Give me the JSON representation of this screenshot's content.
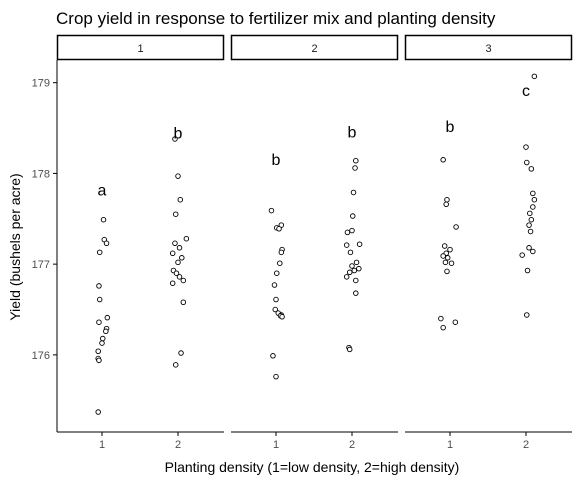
{
  "chart_data": {
    "type": "scatter",
    "title": "Crop yield in response to fertilizer mix and planting density",
    "xlabel": "Planting density (1=low density, 2=high density)",
    "ylabel": "Yield (bushels per acre)",
    "ylim": [
      175.15,
      179.25
    ],
    "y_ticks": [
      176,
      177,
      178,
      179
    ],
    "x_ticks": [
      "1",
      "2"
    ],
    "grid": false,
    "panels": [
      {
        "strip_label": "1",
        "groups": [
          {
            "x": "1",
            "letter": "a",
            "letter_y": 177.82,
            "points": [
              {
                "dx": 0.02,
                "y": 177.49
              },
              {
                "dx": 0.03,
                "y": 177.27
              },
              {
                "dx": 0.06,
                "y": 177.23
              },
              {
                "dx": -0.03,
                "y": 177.13
              },
              {
                "dx": -0.04,
                "y": 176.76
              },
              {
                "dx": -0.03,
                "y": 176.61
              },
              {
                "dx": 0.07,
                "y": 176.41
              },
              {
                "dx": -0.04,
                "y": 176.36
              },
              {
                "dx": 0.06,
                "y": 176.29
              },
              {
                "dx": 0.05,
                "y": 176.26
              },
              {
                "dx": 0.01,
                "y": 176.18
              },
              {
                "dx": 0.0,
                "y": 176.13
              },
              {
                "dx": -0.05,
                "y": 176.04
              },
              {
                "dx": -0.05,
                "y": 175.96
              },
              {
                "dx": -0.04,
                "y": 175.94
              },
              {
                "dx": -0.05,
                "y": 175.37
              }
            ]
          },
          {
            "x": "2",
            "letter": "b",
            "letter_y": 178.45,
            "points": [
              {
                "dx": -0.04,
                "y": 178.38
              },
              {
                "dx": 0.0,
                "y": 177.97
              },
              {
                "dx": 0.03,
                "y": 177.71
              },
              {
                "dx": -0.03,
                "y": 177.55
              },
              {
                "dx": 0.11,
                "y": 177.28
              },
              {
                "dx": -0.04,
                "y": 177.23
              },
              {
                "dx": 0.02,
                "y": 177.18
              },
              {
                "dx": -0.07,
                "y": 177.12
              },
              {
                "dx": 0.05,
                "y": 177.07
              },
              {
                "dx": 0.0,
                "y": 177.02
              },
              {
                "dx": -0.06,
                "y": 176.93
              },
              {
                "dx": -0.02,
                "y": 176.9
              },
              {
                "dx": 0.02,
                "y": 176.86
              },
              {
                "dx": 0.07,
                "y": 176.82
              },
              {
                "dx": -0.07,
                "y": 176.79
              },
              {
                "dx": 0.07,
                "y": 176.58
              },
              {
                "dx": 0.04,
                "y": 176.02
              },
              {
                "dx": -0.03,
                "y": 175.89
              }
            ]
          }
        ]
      },
      {
        "strip_label": "2",
        "groups": [
          {
            "x": "1",
            "letter": "b",
            "letter_y": 178.16,
            "points": [
              {
                "dx": -0.06,
                "y": 177.59
              },
              {
                "dx": 0.07,
                "y": 177.43
              },
              {
                "dx": 0.01,
                "y": 177.4
              },
              {
                "dx": 0.04,
                "y": 177.39
              },
              {
                "dx": 0.08,
                "y": 177.16
              },
              {
                "dx": 0.07,
                "y": 177.13
              },
              {
                "dx": 0.05,
                "y": 177.01
              },
              {
                "dx": 0.01,
                "y": 176.9
              },
              {
                "dx": -0.02,
                "y": 176.77
              },
              {
                "dx": 0.0,
                "y": 176.61
              },
              {
                "dx": -0.01,
                "y": 176.5
              },
              {
                "dx": 0.03,
                "y": 176.46
              },
              {
                "dx": 0.07,
                "y": 176.44
              },
              {
                "dx": 0.06,
                "y": 176.43
              },
              {
                "dx": 0.08,
                "y": 176.42
              },
              {
                "dx": -0.04,
                "y": 175.99
              },
              {
                "dx": 0.0,
                "y": 175.76
              }
            ]
          },
          {
            "x": "2",
            "letter": "b",
            "letter_y": 178.46,
            "points": [
              {
                "dx": 0.05,
                "y": 178.14
              },
              {
                "dx": 0.04,
                "y": 178.06
              },
              {
                "dx": 0.02,
                "y": 177.79
              },
              {
                "dx": 0.01,
                "y": 177.53
              },
              {
                "dx": 0.0,
                "y": 177.37
              },
              {
                "dx": -0.06,
                "y": 177.35
              },
              {
                "dx": 0.1,
                "y": 177.22
              },
              {
                "dx": -0.07,
                "y": 177.21
              },
              {
                "dx": -0.02,
                "y": 177.13
              },
              {
                "dx": 0.06,
                "y": 177.02
              },
              {
                "dx": 0.0,
                "y": 176.98
              },
              {
                "dx": 0.09,
                "y": 176.95
              },
              {
                "dx": 0.03,
                "y": 176.93
              },
              {
                "dx": -0.03,
                "y": 176.91
              },
              {
                "dx": -0.07,
                "y": 176.86
              },
              {
                "dx": 0.05,
                "y": 176.82
              },
              {
                "dx": 0.05,
                "y": 176.68
              },
              {
                "dx": -0.04,
                "y": 176.08
              },
              {
                "dx": -0.03,
                "y": 176.06
              }
            ]
          }
        ]
      },
      {
        "strip_label": "3",
        "groups": [
          {
            "x": "1",
            "letter": "b",
            "letter_y": 178.52,
            "points": [
              {
                "dx": -0.09,
                "y": 178.15
              },
              {
                "dx": -0.04,
                "y": 177.71
              },
              {
                "dx": -0.05,
                "y": 177.66
              },
              {
                "dx": 0.08,
                "y": 177.41
              },
              {
                "dx": -0.07,
                "y": 177.2
              },
              {
                "dx": 0.0,
                "y": 177.16
              },
              {
                "dx": -0.05,
                "y": 177.12
              },
              {
                "dx": -0.09,
                "y": 177.09
              },
              {
                "dx": -0.03,
                "y": 177.07
              },
              {
                "dx": 0.02,
                "y": 177.01
              },
              {
                "dx": -0.06,
                "y": 177.02
              },
              {
                "dx": -0.04,
                "y": 176.92
              },
              {
                "dx": -0.12,
                "y": 176.4
              },
              {
                "dx": 0.07,
                "y": 176.36
              },
              {
                "dx": -0.09,
                "y": 176.3
              }
            ]
          },
          {
            "x": "2",
            "letter": "c",
            "letter_y": 178.92,
            "points": [
              {
                "dx": 0.11,
                "y": 179.07
              },
              {
                "dx": 0.0,
                "y": 178.29
              },
              {
                "dx": 0.01,
                "y": 178.12
              },
              {
                "dx": 0.07,
                "y": 178.05
              },
              {
                "dx": 0.09,
                "y": 177.78
              },
              {
                "dx": 0.11,
                "y": 177.71
              },
              {
                "dx": 0.09,
                "y": 177.63
              },
              {
                "dx": 0.05,
                "y": 177.56
              },
              {
                "dx": 0.07,
                "y": 177.49
              },
              {
                "dx": 0.04,
                "y": 177.43
              },
              {
                "dx": 0.06,
                "y": 177.36
              },
              {
                "dx": 0.04,
                "y": 177.18
              },
              {
                "dx": 0.09,
                "y": 177.14
              },
              {
                "dx": -0.05,
                "y": 177.1
              },
              {
                "dx": 0.02,
                "y": 176.93
              },
              {
                "dx": 0.01,
                "y": 176.44
              }
            ]
          }
        ]
      }
    ]
  }
}
